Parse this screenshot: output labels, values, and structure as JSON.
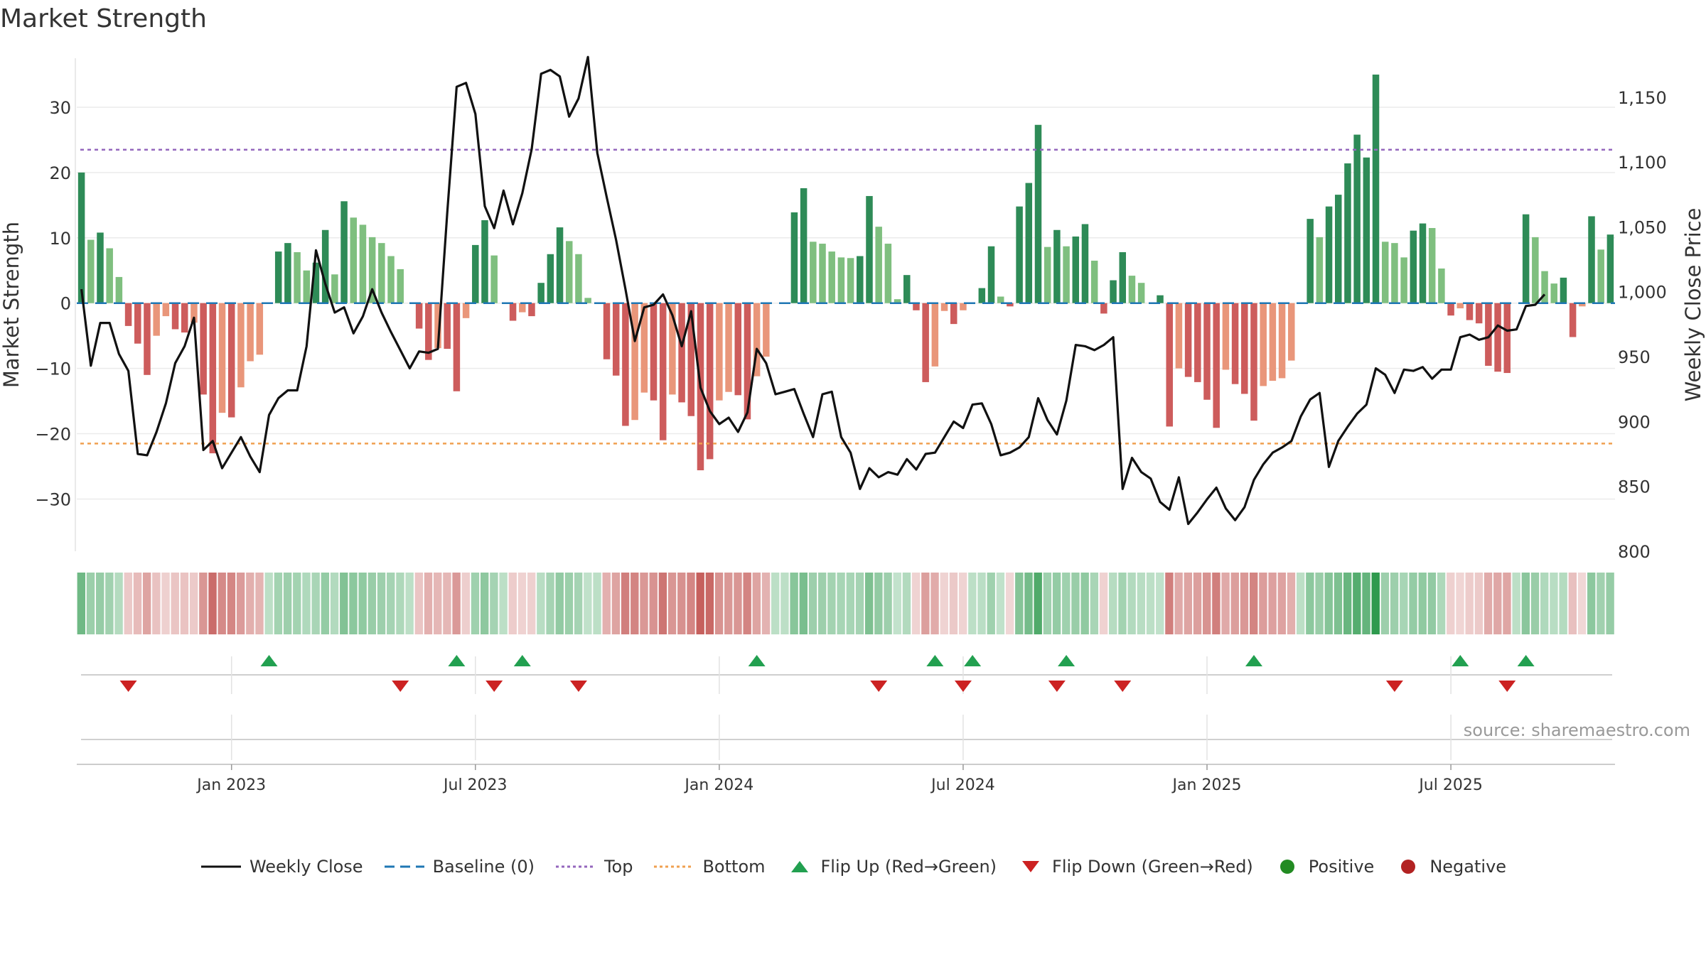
{
  "page_title": "Market Strength",
  "source": "source: sharemaestro.com",
  "colors": {
    "strong_green": "#2e8b57",
    "light_green": "#7fbf7f",
    "strong_red": "#cd5c5c",
    "light_red": "#e9967a",
    "top_line": "#9467bd",
    "bottom_line": "#f0a050",
    "baseline": "#1f77b4",
    "close_line": "#111111",
    "flip_up": "#22a050",
    "flip_down": "#cc2222",
    "positive": "#228b22",
    "negative": "#b22222"
  },
  "chart_data": {
    "type": "bar",
    "title": "Market Strength",
    "ylabel": "Market Strength",
    "y2label": "Weekly Close Price",
    "ylim": [
      -38,
      37.5
    ],
    "y2lim": [
      800,
      1180
    ],
    "yticks": [
      30,
      20,
      10,
      0,
      -10,
      -20,
      -30
    ],
    "ytick_labels": [
      "30",
      "20",
      "10",
      "0",
      "−10",
      "−20",
      "−30"
    ],
    "y2ticks": [
      1150,
      1100,
      1050,
      1000,
      950,
      900,
      850,
      800
    ],
    "y2tick_labels": [
      "1,150",
      "1,100",
      "1,050",
      "1,000",
      "950",
      "900",
      "850",
      "800"
    ],
    "xtick_labels": [
      "Jan 2023",
      "Jul 2023",
      "Jan 2024",
      "Jul 2024",
      "Jan 2025",
      "Jul 2025"
    ],
    "xtick_weeks": [
      16,
      42,
      68,
      94,
      120,
      146
    ],
    "top": 23.5,
    "bottom": -21.5,
    "baseline": 0,
    "strength": [
      20,
      9.7,
      10.8,
      8.4,
      4,
      -3.5,
      -6.2,
      -11,
      -5,
      -2,
      -4,
      -4.5,
      -3,
      -14,
      -23,
      -16.8,
      -17.5,
      -12.9,
      -8.9,
      -7.9,
      0,
      7.9,
      9.2,
      7.8,
      5,
      6.2,
      11.2,
      4.4,
      15.6,
      13.1,
      12,
      10.1,
      9.2,
      7.2,
      5.2,
      0,
      -3.9,
      -8.7,
      -6.9,
      -7,
      -13.5,
      -2.3,
      8.9,
      12.7,
      7.3,
      0,
      -2.7,
      -1.4,
      -2,
      3.1,
      7.5,
      11.6,
      9.5,
      7.5,
      0.8,
      0,
      -8.6,
      -11.1,
      -18.8,
      -17.9,
      -13.7,
      -14.9,
      -21,
      -14,
      -15.2,
      -17.3,
      -25.6,
      -23.9,
      -14.9,
      -13.6,
      -14.1,
      -17.8,
      -11.2,
      -8.2,
      0,
      0,
      13.9,
      17.6,
      9.4,
      9.1,
      7.9,
      7,
      6.9,
      7.2,
      16.4,
      11.7,
      9.1,
      0.6,
      4.3,
      -1.1,
      -12.1,
      -9.7,
      -1.2,
      -3.2,
      -1.1,
      0,
      2.3,
      8.7,
      1,
      -0.5,
      14.8,
      18.4,
      27.3,
      8.6,
      11.2,
      8.7,
      10.2,
      12.1,
      6.5,
      -1.6,
      3.5,
      7.8,
      4.2,
      3.1,
      0,
      1.2,
      -18.9,
      -10,
      -11.3,
      -12.1,
      -14.8,
      -19.1,
      -10.2,
      -12.4,
      -13.9,
      -18,
      -12.7,
      -11.9,
      -11.5,
      -8.8,
      0,
      12.9,
      10.1,
      14.8,
      16.6,
      21.4,
      25.8,
      22.3,
      35,
      9.4,
      9.2,
      7,
      11.1,
      12.2,
      11.5,
      5.3,
      -1.9,
      -0.8,
      -2.6,
      -3.1,
      -9.6,
      -10.5,
      -10.7,
      0,
      13.6,
      10.1,
      4.9,
      3,
      3.9,
      -5.2,
      -0.5,
      13.3,
      8.2,
      10.5
    ],
    "close": [
      1002,
      943,
      976,
      976,
      952,
      939,
      875,
      874,
      892,
      914,
      945,
      958,
      980,
      878,
      885,
      864,
      876,
      888,
      873,
      861,
      905,
      918,
      924,
      924,
      958,
      1032,
      1006,
      984,
      988,
      968,
      981,
      1002,
      984,
      969,
      955,
      941,
      954,
      953,
      956,
      1061,
      1158,
      1161,
      1137,
      1066,
      1049,
      1078,
      1052,
      1076,
      1110,
      1168,
      1171,
      1166,
      1135,
      1149,
      1181,
      1107,
      1073,
      1040,
      1002,
      962,
      988,
      990,
      998,
      982,
      958,
      985,
      926,
      908,
      898,
      903,
      892,
      907,
      956,
      945,
      921,
      923,
      925,
      906,
      888,
      921,
      923,
      888,
      876,
      848,
      864,
      857,
      861,
      859,
      871,
      863,
      875,
      876,
      888,
      900,
      895,
      913,
      914,
      898,
      874,
      876,
      880,
      888,
      918,
      901,
      890,
      916,
      959,
      958,
      955,
      959,
      965,
      848,
      872,
      861,
      856,
      838,
      832,
      857,
      821,
      830,
      840,
      849,
      833,
      824,
      834,
      855,
      867,
      876,
      880,
      885,
      904,
      917,
      922,
      865,
      885,
      896,
      906,
      913,
      941,
      936,
      922,
      940,
      939,
      942,
      933,
      940,
      940,
      965,
      967,
      963,
      965,
      974,
      970,
      971,
      989,
      990,
      998
    ],
    "flip_up_weeks": [
      20,
      40,
      47,
      72,
      91,
      95,
      105,
      125,
      147,
      154
    ],
    "flip_down_weeks": [
      5,
      34,
      44,
      53,
      85,
      94,
      104,
      111,
      140,
      152
    ]
  },
  "legend": [
    {
      "label": "Weekly Close",
      "icon": "solid-line-icon"
    },
    {
      "label": "Baseline (0)",
      "icon": "dashed-line-icon"
    },
    {
      "label": "Top",
      "icon": "dotted-line-icon"
    },
    {
      "label": "Bottom",
      "icon": "dotted-line-icon"
    },
    {
      "label": "Flip Up (Red→Green)",
      "icon": "triangle-up-icon"
    },
    {
      "label": "Flip Down (Green→Red)",
      "icon": "triangle-down-icon"
    },
    {
      "label": "Positive",
      "icon": "circle-icon"
    },
    {
      "label": "Negative",
      "icon": "circle-icon"
    }
  ]
}
